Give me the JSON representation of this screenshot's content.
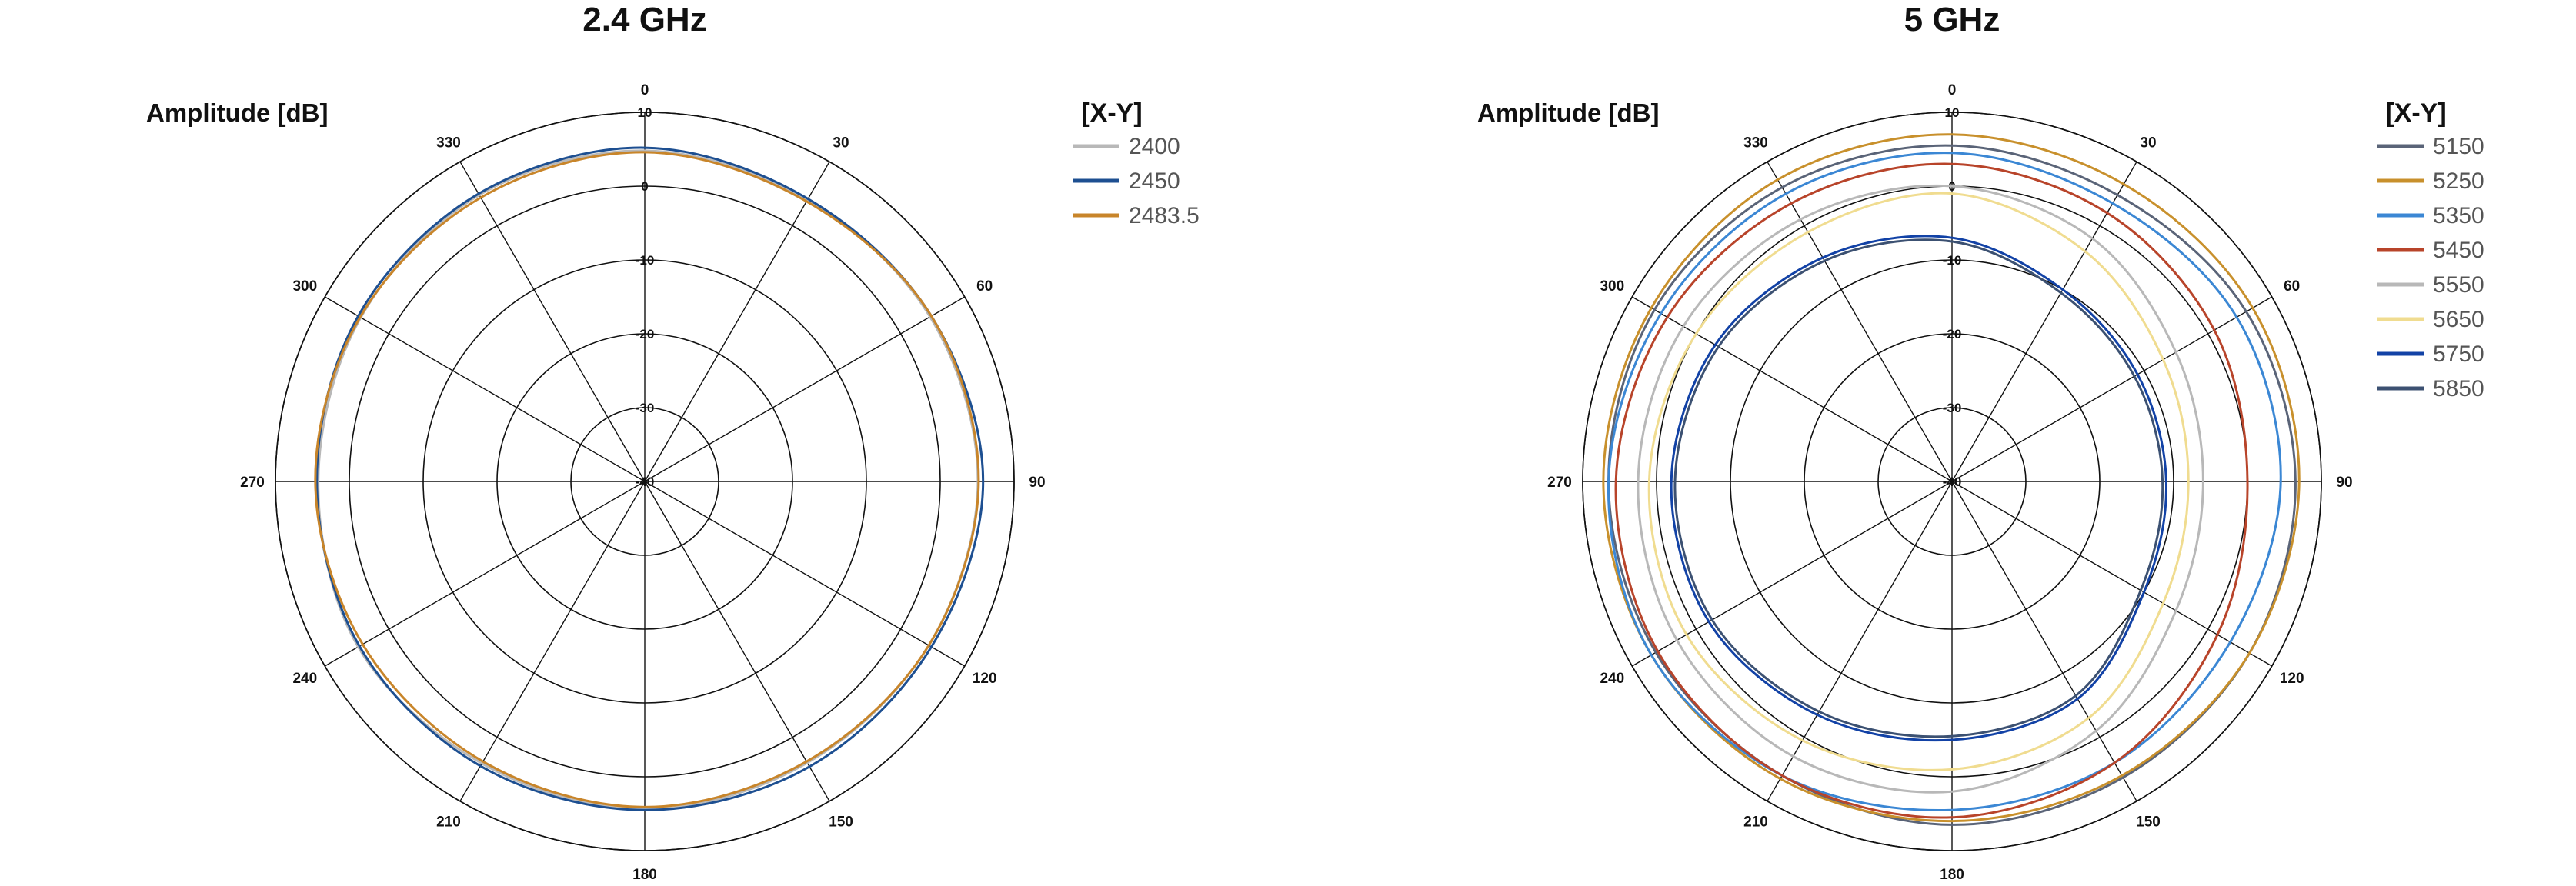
{
  "chart_data": [
    {
      "type": "polar",
      "title": "2.4 GHz",
      "ylabel": "Amplitude [dB]",
      "legend_title": "[X-Y]",
      "legend_position": "top-right",
      "angle_ticks": [
        "0",
        "30",
        "60",
        "90",
        "120",
        "150",
        "180",
        "210",
        "240",
        "270",
        "300",
        "330"
      ],
      "radial_ticks": [
        "-40",
        "-30",
        "-20",
        "-10",
        "0",
        "10"
      ],
      "rlim": [
        -40,
        10
      ],
      "series": [
        {
          "name": "2400",
          "color": "#b8b8b8",
          "angles": [
            0,
            30,
            60,
            90,
            120,
            150,
            180,
            210,
            240,
            270,
            300,
            330
          ],
          "values": [
            4.8,
            4.0,
            4.6,
            5.1,
            4.4,
            4.0,
            4.4,
            4.1,
            4.8,
            4.2,
            4.4,
            4.8
          ]
        },
        {
          "name": "2450",
          "color": "#1d4f91",
          "angles": [
            0,
            30,
            60,
            90,
            120,
            150,
            180,
            210,
            240,
            270,
            300,
            330
          ],
          "values": [
            5.2,
            4.2,
            4.8,
            5.8,
            4.8,
            4.6,
            4.5,
            4.5,
            4.6,
            4.4,
            4.8,
            5.0
          ]
        },
        {
          "name": "2483.5",
          "color": "#c8852a",
          "angles": [
            0,
            30,
            60,
            90,
            120,
            150,
            180,
            210,
            240,
            270,
            300,
            330
          ],
          "values": [
            4.6,
            3.8,
            4.8,
            5.2,
            4.4,
            3.8,
            4.1,
            3.8,
            4.1,
            4.6,
            4.5,
            4.4
          ]
        }
      ]
    },
    {
      "type": "polar",
      "title": "5 GHz",
      "ylabel": "Amplitude [dB]",
      "legend_title": "[X-Y]",
      "legend_position": "top-right",
      "angle_ticks": [
        "0",
        "30",
        "60",
        "90",
        "120",
        "150",
        "180",
        "210",
        "240",
        "270",
        "300",
        "330"
      ],
      "radial_ticks": [
        "-40",
        "-30",
        "-20",
        "-10",
        "0",
        "10"
      ],
      "rlim": [
        -40,
        10
      ],
      "series": [
        {
          "name": "5150",
          "color": "#5a6478",
          "angles": [
            0,
            30,
            60,
            90,
            120,
            150,
            180,
            210,
            240,
            270,
            300,
            330
          ],
          "values": [
            5.5,
            4.8,
            6.0,
            6.5,
            6.5,
            6.3,
            6.5,
            6.0,
            6.3,
            6.5,
            6.5,
            6.0
          ]
        },
        {
          "name": "5250",
          "color": "#c8902c",
          "angles": [
            0,
            30,
            60,
            90,
            120,
            150,
            180,
            210,
            240,
            270,
            300,
            330
          ],
          "values": [
            7.0,
            6.5,
            7.0,
            7.0,
            6.5,
            6.0,
            6.0,
            6.5,
            7.0,
            7.2,
            7.0,
            7.2
          ]
        },
        {
          "name": "5350",
          "color": "#3b87d4",
          "angles": [
            0,
            30,
            60,
            90,
            120,
            150,
            180,
            210,
            240,
            270,
            300,
            330
          ],
          "values": [
            4.5,
            3.5,
            4.5,
            4.5,
            3.5,
            4.0,
            4.5,
            6.0,
            7.0,
            6.5,
            5.5,
            5.0
          ]
        },
        {
          "name": "5450",
          "color": "#b8442a",
          "angles": [
            0,
            30,
            60,
            90,
            120,
            150,
            180,
            210,
            240,
            270,
            300,
            330
          ],
          "values": [
            3.0,
            2.0,
            1.0,
            0.0,
            1.5,
            4.0,
            5.5,
            6.0,
            6.0,
            5.5,
            4.5,
            3.5
          ]
        },
        {
          "name": "5550",
          "color": "#b8b8b8",
          "angles": [
            0,
            30,
            60,
            90,
            120,
            150,
            180,
            210,
            240,
            270,
            300,
            330
          ],
          "values": [
            0.0,
            -2.0,
            -5.0,
            -6.0,
            -5.0,
            -1.0,
            2.0,
            3.0,
            3.0,
            2.5,
            2.0,
            1.0
          ]
        },
        {
          "name": "5650",
          "color": "#f0dc90",
          "angles": [
            0,
            30,
            60,
            90,
            120,
            150,
            180,
            210,
            240,
            270,
            300,
            330
          ],
          "values": [
            -1.0,
            -4.0,
            -7.0,
            -8.0,
            -7.0,
            -3.0,
            -1.0,
            0.5,
            1.5,
            1.0,
            0.0,
            -1.0
          ]
        },
        {
          "name": "5750",
          "color": "#1242a6",
          "angles": [
            0,
            30,
            60,
            90,
            120,
            150,
            180,
            210,
            240,
            270,
            300,
            330
          ],
          "values": [
            -7.0,
            -10.0,
            -11.0,
            -11.0,
            -10.0,
            -6.0,
            -5.0,
            -3.5,
            -2.0,
            -2.0,
            -3.0,
            -5.0
          ]
        },
        {
          "name": "5850",
          "color": "#3c5172",
          "angles": [
            0,
            30,
            60,
            90,
            120,
            150,
            180,
            210,
            240,
            270,
            300,
            330
          ],
          "values": [
            -7.5,
            -10.5,
            -11.5,
            -11.5,
            -10.5,
            -6.5,
            -5.5,
            -4.0,
            -2.5,
            -2.5,
            -3.5,
            -5.5
          ]
        }
      ]
    }
  ]
}
